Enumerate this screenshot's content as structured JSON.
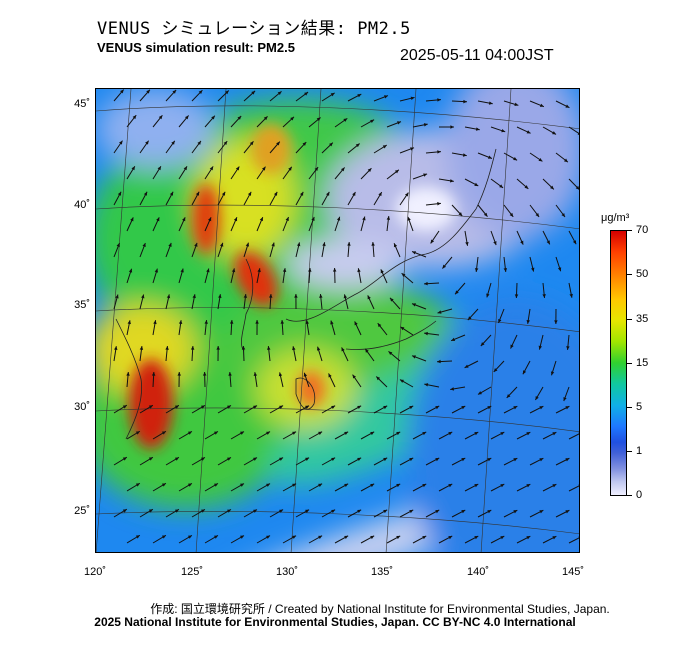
{
  "header": {
    "title_jp": "VENUS シミュレーション結果: PM2.5",
    "title_en": "VENUS simulation result: PM2.5",
    "timestamp": "2025-05-11 04:00JST"
  },
  "map": {
    "lat_labels": [
      "45˚",
      "40˚",
      "35˚",
      "30˚",
      "25˚"
    ],
    "lon_labels": [
      "120˚",
      "125˚",
      "130˚",
      "135˚",
      "140˚",
      "145˚"
    ]
  },
  "colorbar": {
    "unit": "μg/m³",
    "labels": [
      "70",
      "50",
      "35",
      "15",
      "5",
      "1",
      "0"
    ]
  },
  "footer": {
    "credit": "作成: 国立環境研究所 / Created by National Institute for Environmental Studies, Japan.",
    "license": "2025 National Institute for Environmental Studies, Japan. CC BY-NC 4.0 International"
  }
}
